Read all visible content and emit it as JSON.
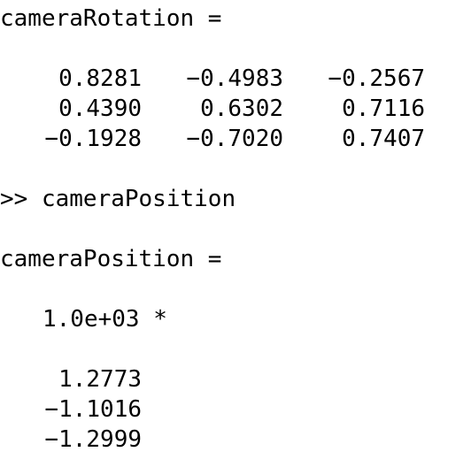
{
  "console": {
    "rotation_header": "cameraRotation =",
    "rotation_matrix": [
      [
        "0.8281",
        "−0.4983",
        "−0.2567"
      ],
      [
        "0.4390",
        "0.6302",
        "0.7116"
      ],
      [
        "−0.1928",
        "−0.7020",
        "0.7407"
      ]
    ],
    "prompt_command": ">> cameraPosition",
    "position_header": "cameraPosition =",
    "position_scale": "1.0e+03 *",
    "position_vector": [
      "1.2773",
      "−1.1016",
      "−1.2999"
    ]
  }
}
